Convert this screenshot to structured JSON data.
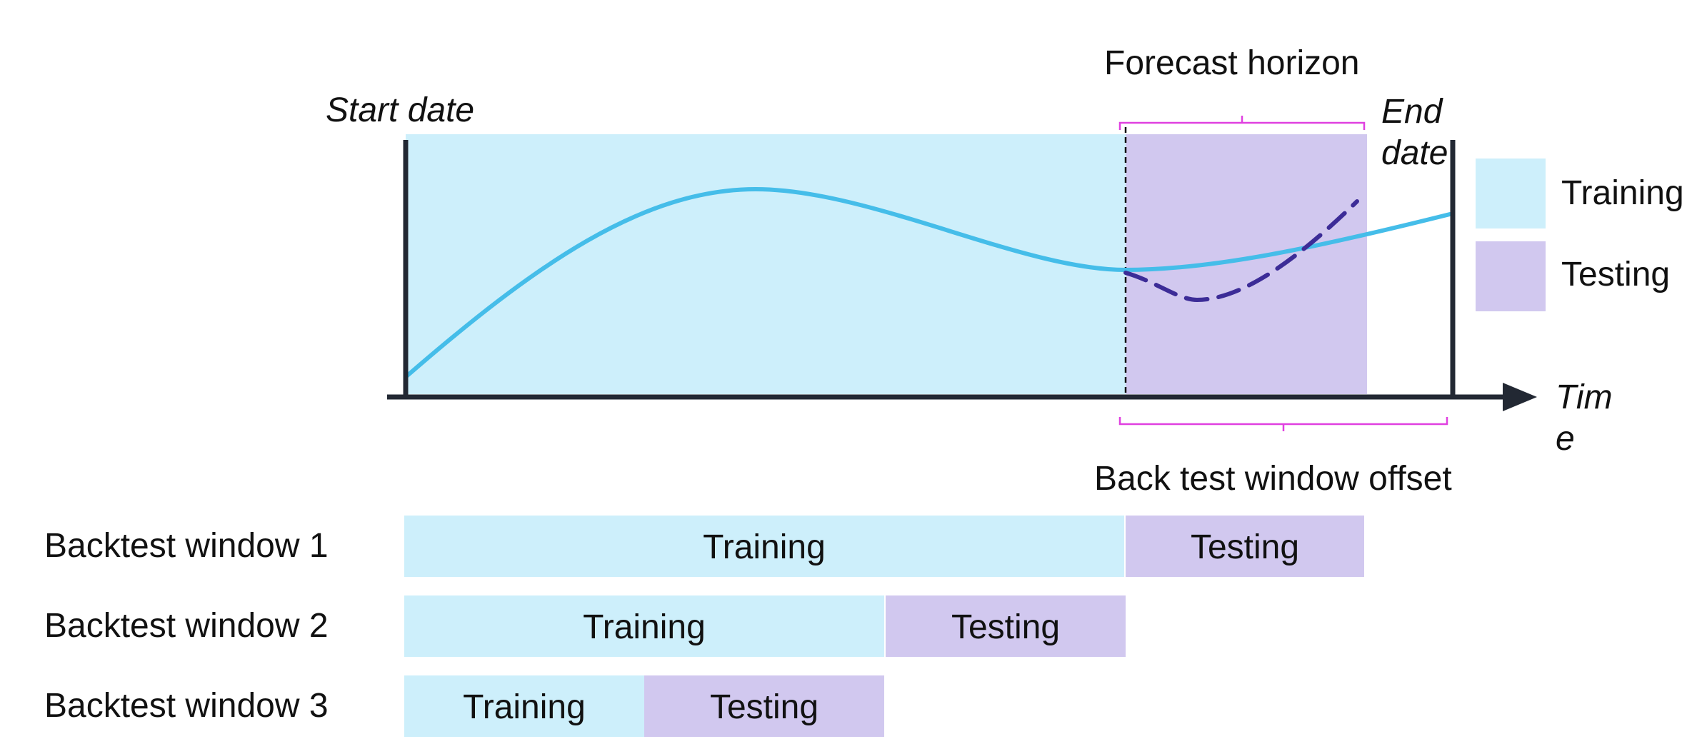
{
  "labels": {
    "start_date": "Start date",
    "end_date_line1": "End",
    "end_date_line2": "date",
    "time_line1": "Tim",
    "time_line2": "e",
    "forecast_horizon": "Forecast horizon",
    "backtest_offset": "Back test window offset"
  },
  "legend": {
    "training": "Training",
    "testing": "Testing"
  },
  "windows": [
    {
      "label": "Backtest window 1",
      "training": "Training",
      "testing": "Testing"
    },
    {
      "label": "Backtest window 2",
      "training": "Training",
      "testing": "Testing"
    },
    {
      "label": "Backtest window 3",
      "training": "Training",
      "testing": "Testing"
    }
  ],
  "colors": {
    "training": "#cdeffb",
    "testing": "#d1c8ef",
    "series": "#45bde9",
    "forecast": "#3c2c97",
    "bracket": "#e040e0",
    "axis": "#222833"
  }
}
